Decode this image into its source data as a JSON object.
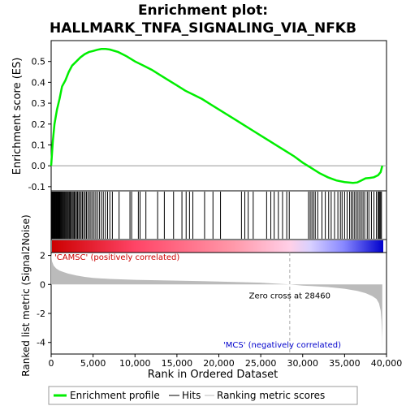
{
  "chart_data": {
    "type": "line",
    "title_line1": "Enrichment plot:",
    "title_line2": "HALLMARK_TNFA_SIGNALING_VIA_NFKB",
    "es_panel": {
      "ylabel": "Enrichment score (ES)",
      "ylim": [
        -0.12,
        0.6
      ],
      "yticks": [
        -0.1,
        0.0,
        0.1,
        0.2,
        0.3,
        0.4,
        0.5
      ],
      "ytick_labels": [
        "-0.1",
        "0.0",
        "0.1",
        "0.2",
        "0.3",
        "0.4",
        "0.5"
      ],
      "series": [
        {
          "name": "Enrichment profile",
          "color": "#00ee00",
          "x": [
            0,
            200,
            400,
            700,
            1000,
            1300,
            1700,
            2100,
            2500,
            3000,
            3500,
            4000,
            4500,
            5000,
            5500,
            6000,
            6500,
            7000,
            8000,
            9000,
            10000,
            11000,
            12000,
            13000,
            14000,
            15000,
            16000,
            17000,
            18000,
            19000,
            20000,
            21000,
            22000,
            23000,
            24000,
            25000,
            26000,
            27000,
            28000,
            29000,
            30000,
            31000,
            32000,
            33000,
            34000,
            35000,
            36000,
            36500,
            37000,
            37500,
            38000,
            38500,
            39000,
            39300,
            39500
          ],
          "y": [
            0.0,
            0.12,
            0.2,
            0.27,
            0.32,
            0.38,
            0.41,
            0.45,
            0.48,
            0.5,
            0.52,
            0.535,
            0.545,
            0.55,
            0.556,
            0.56,
            0.56,
            0.557,
            0.545,
            0.525,
            0.5,
            0.48,
            0.46,
            0.435,
            0.41,
            0.385,
            0.36,
            0.34,
            0.32,
            0.295,
            0.27,
            0.245,
            0.22,
            0.195,
            0.17,
            0.145,
            0.12,
            0.095,
            0.07,
            0.045,
            0.015,
            -0.01,
            -0.035,
            -0.055,
            -0.07,
            -0.078,
            -0.082,
            -0.08,
            -0.07,
            -0.06,
            -0.058,
            -0.055,
            -0.045,
            -0.03,
            0.0
          ]
        }
      ]
    },
    "hits_panel": {
      "hits_label": "Hits",
      "hit_positions": [
        60,
        130,
        190,
        250,
        310,
        360,
        420,
        480,
        540,
        600,
        660,
        720,
        780,
        850,
        920,
        990,
        1060,
        1140,
        1220,
        1300,
        1390,
        1480,
        1570,
        1660,
        1760,
        1860,
        1960,
        2060,
        2170,
        2280,
        2400,
        2520,
        2640,
        2760,
        2890,
        3020,
        3150,
        3290,
        3430,
        3580,
        3730,
        3890,
        4050,
        4210,
        4380,
        4560,
        4740,
        4930,
        5120,
        5320,
        5530,
        5750,
        5980,
        6220,
        6470,
        6730,
        7000,
        7300,
        8100,
        9400,
        9600,
        10400,
        10600,
        11300,
        12700,
        13500,
        14600,
        15600,
        16100,
        16500,
        16900,
        18300,
        19300,
        20200,
        22700,
        23100,
        23500,
        24100,
        25700,
        26200,
        26600,
        27100,
        27600,
        28100,
        28400,
        30700,
        30900,
        31100,
        31300,
        31500,
        31800,
        32300,
        32700,
        33100,
        33400,
        33800,
        34200,
        34500,
        34700,
        35000,
        35300,
        35600,
        35800,
        36000,
        36200,
        36400,
        36600,
        36800,
        37000,
        37200,
        37400,
        37700,
        37900,
        38200,
        38500,
        38800,
        39000,
        39100,
        39200,
        39300,
        39400
      ]
    },
    "metric_panel": {
      "ylabel": "Ranked list metric (Signal2Noise)",
      "xlabel": "Rank in Ordered Dataset",
      "ylim": [
        -4.8,
        2.2
      ],
      "yticks": [
        -4,
        -2,
        0,
        2
      ],
      "ytick_labels": [
        "-4",
        "-2",
        "0",
        "2"
      ],
      "xlim": [
        0,
        40000
      ],
      "xticks": [
        0,
        5000,
        10000,
        15000,
        20000,
        25000,
        30000,
        35000,
        40000
      ],
      "xtick_labels": [
        "0",
        "5,000",
        "10,000",
        "15,000",
        "20,000",
        "25,000",
        "30,000",
        "35,000",
        "40,000"
      ],
      "metric_x": [
        0,
        100,
        300,
        600,
        1000,
        1500,
        2000,
        3000,
        4000,
        5000,
        7000,
        10000,
        15000,
        20000,
        25000,
        28460,
        30000,
        33000,
        35000,
        36500,
        37500,
        38300,
        38800,
        39100,
        39300,
        39400,
        39480,
        39500
      ],
      "metric_y": [
        2.2,
        1.6,
        1.3,
        1.1,
        0.95,
        0.85,
        0.75,
        0.62,
        0.52,
        0.45,
        0.38,
        0.32,
        0.26,
        0.2,
        0.12,
        0.0,
        -0.08,
        -0.18,
        -0.3,
        -0.45,
        -0.6,
        -0.8,
        -1.0,
        -1.3,
        -1.8,
        -2.5,
        -3.6,
        -4.6
      ],
      "zero_cross_label": "Zero cross at 28460",
      "zero_cross_x": 28460,
      "pos_label": "'CAMSC' (positively correlated)",
      "neg_label": "'MCS' (negatively correlated)"
    },
    "legend": [
      {
        "label": "Enrichment profile",
        "color": "#00ee00"
      },
      {
        "label": "Hits",
        "color": "#000000"
      },
      {
        "label": "Ranking metric scores",
        "color": "#bbbbbb"
      }
    ],
    "colors": {
      "es_line": "#00ee00",
      "pos_label": "#cc0000",
      "neg_label": "#0000cc",
      "metric_fill": "#bbbbbb"
    }
  }
}
